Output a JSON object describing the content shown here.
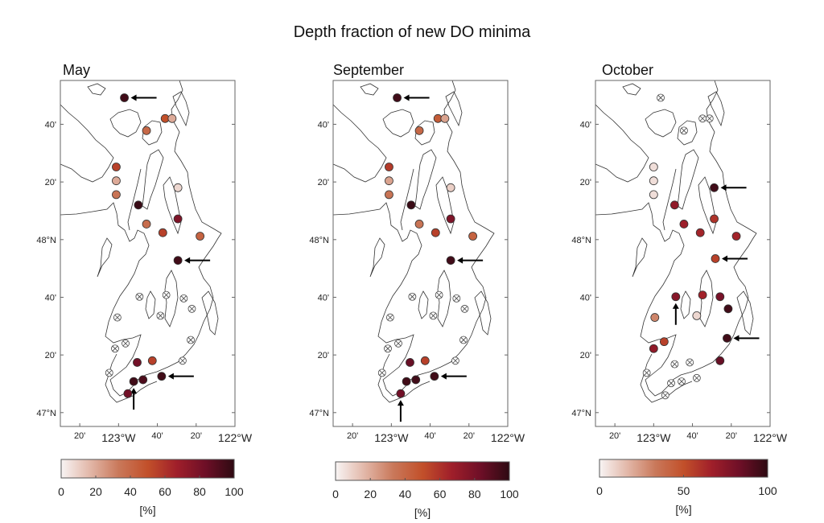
{
  "title": "Depth fraction of new DO minima",
  "colormap": [
    "#f8f4f4",
    "#e2b7a8",
    "#c9785a",
    "#c2502a",
    "#a01f2a",
    "#6e0f27",
    "#2e0a12"
  ],
  "nodata_marker": "crossed-circle",
  "axes": {
    "lon_range": [
      -123.5,
      -122.0
    ],
    "lat_range": [
      46.92,
      48.92
    ],
    "lon_ticks": [
      {
        "value": -123.3333,
        "label": "20'"
      },
      {
        "value": -123.0,
        "label": "123°W"
      },
      {
        "value": -122.6667,
        "label": "40'"
      },
      {
        "value": -122.3333,
        "label": "20'"
      },
      {
        "value": -122.0,
        "label": "122°W"
      }
    ],
    "lat_ticks": [
      {
        "value": 48.6667,
        "label": "40'"
      },
      {
        "value": 48.3333,
        "label": "20'"
      },
      {
        "value": 48.0,
        "label": "48°N"
      },
      {
        "value": 47.6667,
        "label": "40'"
      },
      {
        "value": 47.3333,
        "label": "20'"
      },
      {
        "value": 47.0,
        "label": "47°N"
      }
    ]
  },
  "panels": [
    {
      "title": "May",
      "colorbar": {
        "range": [
          0,
          100
        ],
        "ticks": [
          "0",
          "20",
          "40",
          "60",
          "80",
          "100"
        ],
        "label": "[%]"
      },
      "stations": [
        {
          "lon": -122.95,
          "lat": 48.82,
          "value": 95,
          "arrow": "left"
        },
        {
          "lon": -122.6,
          "lat": 48.7,
          "value": 50
        },
        {
          "lon": -122.54,
          "lat": 48.7,
          "value": 20
        },
        {
          "lon": -122.76,
          "lat": 48.63,
          "value": 40
        },
        {
          "lon": -123.02,
          "lat": 48.42,
          "value": 55
        },
        {
          "lon": -123.02,
          "lat": 48.34,
          "value": 20
        },
        {
          "lon": -123.02,
          "lat": 48.26,
          "value": 35
        },
        {
          "lon": -122.83,
          "lat": 48.2,
          "value": 97
        },
        {
          "lon": -122.49,
          "lat": 48.3,
          "value": 8
        },
        {
          "lon": -122.49,
          "lat": 48.12,
          "value": 78
        },
        {
          "lon": -122.76,
          "lat": 48.09,
          "value": 38
        },
        {
          "lon": -122.62,
          "lat": 48.04,
          "value": 55
        },
        {
          "lon": -122.3,
          "lat": 48.02,
          "value": 42
        },
        {
          "lon": -122.49,
          "lat": 47.88,
          "value": 95,
          "arrow": "left"
        },
        {
          "lon": -122.82,
          "lat": 47.67,
          "value": null
        },
        {
          "lon": -122.59,
          "lat": 47.68,
          "value": null
        },
        {
          "lon": -122.44,
          "lat": 47.66,
          "value": null
        },
        {
          "lon": -122.37,
          "lat": 47.6,
          "value": null
        },
        {
          "lon": -122.64,
          "lat": 47.56,
          "value": null
        },
        {
          "lon": -123.01,
          "lat": 47.55,
          "value": null
        },
        {
          "lon": -122.94,
          "lat": 47.4,
          "value": null
        },
        {
          "lon": -123.03,
          "lat": 47.37,
          "value": null
        },
        {
          "lon": -122.38,
          "lat": 47.42,
          "value": null
        },
        {
          "lon": -122.45,
          "lat": 47.3,
          "value": null
        },
        {
          "lon": -123.08,
          "lat": 47.23,
          "value": null
        },
        {
          "lon": -122.84,
          "lat": 47.29,
          "value": 82
        },
        {
          "lon": -122.71,
          "lat": 47.3,
          "value": 55
        },
        {
          "lon": -122.87,
          "lat": 47.18,
          "value": 95,
          "arrow": "up"
        },
        {
          "lon": -122.79,
          "lat": 47.19,
          "value": 92
        },
        {
          "lon": -122.63,
          "lat": 47.21,
          "value": 95,
          "arrow": "left"
        },
        {
          "lon": -122.92,
          "lat": 47.11,
          "value": 82
        }
      ]
    },
    {
      "title": "September",
      "colorbar": {
        "range": [
          0,
          100
        ],
        "ticks": [
          "0",
          "20",
          "40",
          "60",
          "80",
          "100"
        ],
        "label": "[%]"
      },
      "stations": [
        {
          "lon": -122.95,
          "lat": 48.82,
          "value": 95,
          "arrow": "left"
        },
        {
          "lon": -122.6,
          "lat": 48.7,
          "value": 45
        },
        {
          "lon": -122.54,
          "lat": 48.7,
          "value": 22
        },
        {
          "lon": -122.76,
          "lat": 48.63,
          "value": 40
        },
        {
          "lon": -123.02,
          "lat": 48.42,
          "value": 57
        },
        {
          "lon": -123.02,
          "lat": 48.34,
          "value": 22
        },
        {
          "lon": -123.02,
          "lat": 48.26,
          "value": 35
        },
        {
          "lon": -122.83,
          "lat": 48.2,
          "value": 97
        },
        {
          "lon": -122.49,
          "lat": 48.3,
          "value": 10
        },
        {
          "lon": -122.49,
          "lat": 48.12,
          "value": 78
        },
        {
          "lon": -122.76,
          "lat": 48.09,
          "value": 35
        },
        {
          "lon": -122.62,
          "lat": 48.04,
          "value": 55
        },
        {
          "lon": -122.3,
          "lat": 48.02,
          "value": 42
        },
        {
          "lon": -122.49,
          "lat": 47.88,
          "value": 95,
          "arrow": "left"
        },
        {
          "lon": -122.82,
          "lat": 47.67,
          "value": null
        },
        {
          "lon": -122.59,
          "lat": 47.68,
          "value": null
        },
        {
          "lon": -122.44,
          "lat": 47.66,
          "value": null
        },
        {
          "lon": -122.37,
          "lat": 47.6,
          "value": null
        },
        {
          "lon": -122.64,
          "lat": 47.56,
          "value": null
        },
        {
          "lon": -123.01,
          "lat": 47.55,
          "value": null
        },
        {
          "lon": -122.94,
          "lat": 47.4,
          "value": null
        },
        {
          "lon": -123.03,
          "lat": 47.37,
          "value": null
        },
        {
          "lon": -122.38,
          "lat": 47.42,
          "value": null
        },
        {
          "lon": -122.45,
          "lat": 47.3,
          "value": null
        },
        {
          "lon": -123.08,
          "lat": 47.23,
          "value": null
        },
        {
          "lon": -122.84,
          "lat": 47.29,
          "value": 85
        },
        {
          "lon": -122.71,
          "lat": 47.3,
          "value": 55
        },
        {
          "lon": -122.87,
          "lat": 47.18,
          "value": 95
        },
        {
          "lon": -122.79,
          "lat": 47.19,
          "value": 95
        },
        {
          "lon": -122.63,
          "lat": 47.21,
          "value": 95,
          "arrow": "left"
        },
        {
          "lon": -122.92,
          "lat": 47.11,
          "value": 82,
          "arrow": "up"
        }
      ]
    },
    {
      "title": "October",
      "colorbar": {
        "range": [
          0,
          100
        ],
        "ticks": [
          "0",
          "50",
          "100"
        ],
        "label": "[%]"
      },
      "stations": [
        {
          "lon": -122.94,
          "lat": 48.82,
          "value": null
        },
        {
          "lon": -122.58,
          "lat": 48.7,
          "value": null
        },
        {
          "lon": -122.52,
          "lat": 48.7,
          "value": null
        },
        {
          "lon": -122.74,
          "lat": 48.63,
          "value": null
        },
        {
          "lon": -123.0,
          "lat": 48.42,
          "value": 6
        },
        {
          "lon": -123.0,
          "lat": 48.34,
          "value": 6
        },
        {
          "lon": -123.0,
          "lat": 48.26,
          "value": 6
        },
        {
          "lon": -122.48,
          "lat": 48.3,
          "value": 95,
          "arrow": "left"
        },
        {
          "lon": -122.82,
          "lat": 48.2,
          "value": 72
        },
        {
          "lon": -122.74,
          "lat": 48.09,
          "value": 68
        },
        {
          "lon": -122.48,
          "lat": 48.12,
          "value": 60
        },
        {
          "lon": -122.6,
          "lat": 48.04,
          "value": 65
        },
        {
          "lon": -122.29,
          "lat": 48.02,
          "value": 65
        },
        {
          "lon": -122.47,
          "lat": 47.89,
          "value": 55,
          "arrow": "left"
        },
        {
          "lon": -122.81,
          "lat": 47.67,
          "value": 75,
          "arrow": "up"
        },
        {
          "lon": -122.58,
          "lat": 47.68,
          "value": 66
        },
        {
          "lon": -122.43,
          "lat": 47.67,
          "value": 80
        },
        {
          "lon": -122.36,
          "lat": 47.6,
          "value": 95
        },
        {
          "lon": -122.63,
          "lat": 47.56,
          "value": 8
        },
        {
          "lon": -122.99,
          "lat": 47.55,
          "value": 30
        },
        {
          "lon": -122.91,
          "lat": 47.41,
          "value": 55
        },
        {
          "lon": -123.0,
          "lat": 47.37,
          "value": 72
        },
        {
          "lon": -122.37,
          "lat": 47.43,
          "value": 95,
          "arrow": "left"
        },
        {
          "lon": -122.43,
          "lat": 47.3,
          "value": 85
        },
        {
          "lon": -122.82,
          "lat": 47.28,
          "value": null
        },
        {
          "lon": -122.69,
          "lat": 47.29,
          "value": null
        },
        {
          "lon": -123.06,
          "lat": 47.23,
          "value": null
        },
        {
          "lon": -122.76,
          "lat": 47.18,
          "value": null
        },
        {
          "lon": -122.63,
          "lat": 47.2,
          "value": null
        },
        {
          "lon": -122.85,
          "lat": 47.17,
          "value": null
        },
        {
          "lon": -122.9,
          "lat": 47.1,
          "value": null
        }
      ]
    }
  ]
}
